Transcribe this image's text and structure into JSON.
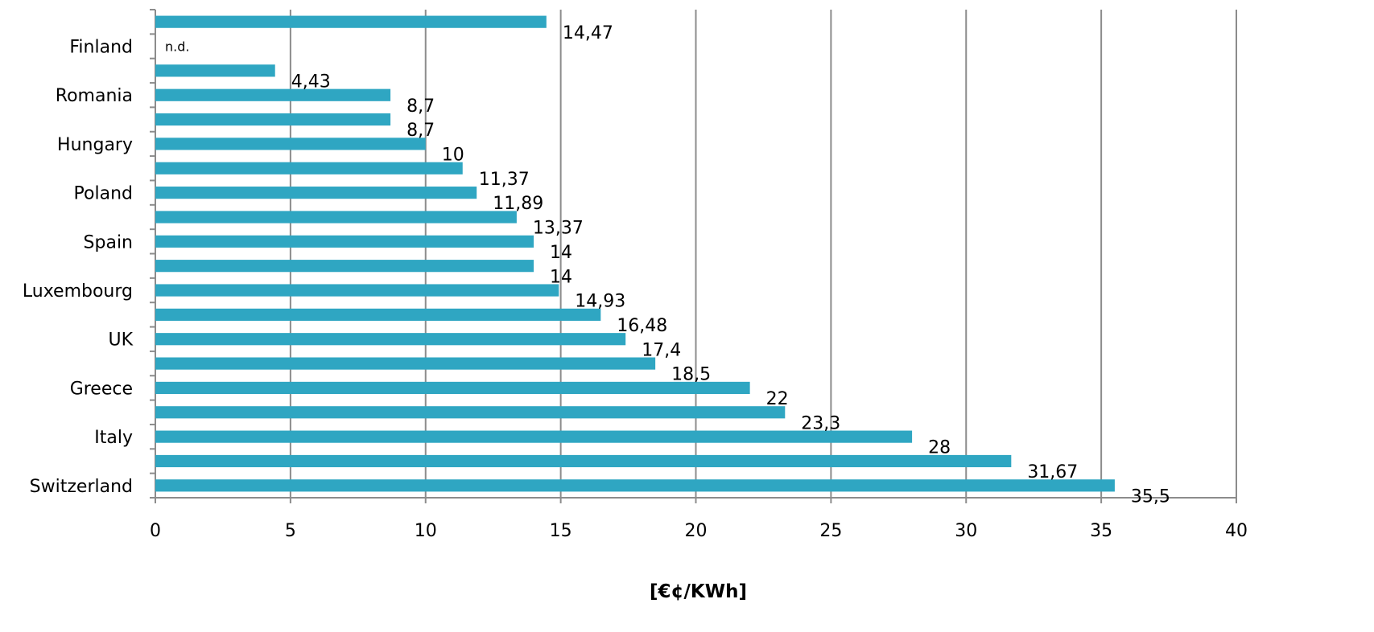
{
  "chart_data": {
    "type": "bar",
    "orientation": "horizontal",
    "title": "",
    "xlabel": "[€¢/KWh]",
    "ylabel": "",
    "xlim": [
      0,
      40
    ],
    "x_ticks": [
      0,
      5,
      10,
      15,
      20,
      25,
      30,
      35,
      40
    ],
    "grid": "vertical",
    "bar_color": "#2fa6c2",
    "bars": [
      {
        "category": "",
        "value": 14.47,
        "label": "14,47"
      },
      {
        "category": "Finland",
        "value": null,
        "label": "n.d."
      },
      {
        "category": "",
        "value": 4.43,
        "label": "4,43"
      },
      {
        "category": "Romania",
        "value": 8.7,
        "label": "8,7"
      },
      {
        "category": "",
        "value": 8.7,
        "label": "8,7"
      },
      {
        "category": "Hungary",
        "value": 10,
        "label": "10"
      },
      {
        "category": "",
        "value": 11.37,
        "label": "11,37"
      },
      {
        "category": "Poland",
        "value": 11.89,
        "label": "11,89"
      },
      {
        "category": "",
        "value": 13.37,
        "label": "13,37"
      },
      {
        "category": "Spain",
        "value": 14,
        "label": "14"
      },
      {
        "category": "",
        "value": 14,
        "label": "14"
      },
      {
        "category": "Luxembourg",
        "value": 14.93,
        "label": "14,93"
      },
      {
        "category": "",
        "value": 16.48,
        "label": "16,48"
      },
      {
        "category": "UK",
        "value": 17.4,
        "label": "17,4"
      },
      {
        "category": "",
        "value": 18.5,
        "label": "18,5"
      },
      {
        "category": "Greece",
        "value": 22,
        "label": "22"
      },
      {
        "category": "",
        "value": 23.3,
        "label": "23,3"
      },
      {
        "category": "Italy",
        "value": 28,
        "label": "28"
      },
      {
        "category": "",
        "value": 31.67,
        "label": "31,67"
      },
      {
        "category": "Switzerland",
        "value": 35.5,
        "label": "35,5"
      }
    ]
  }
}
